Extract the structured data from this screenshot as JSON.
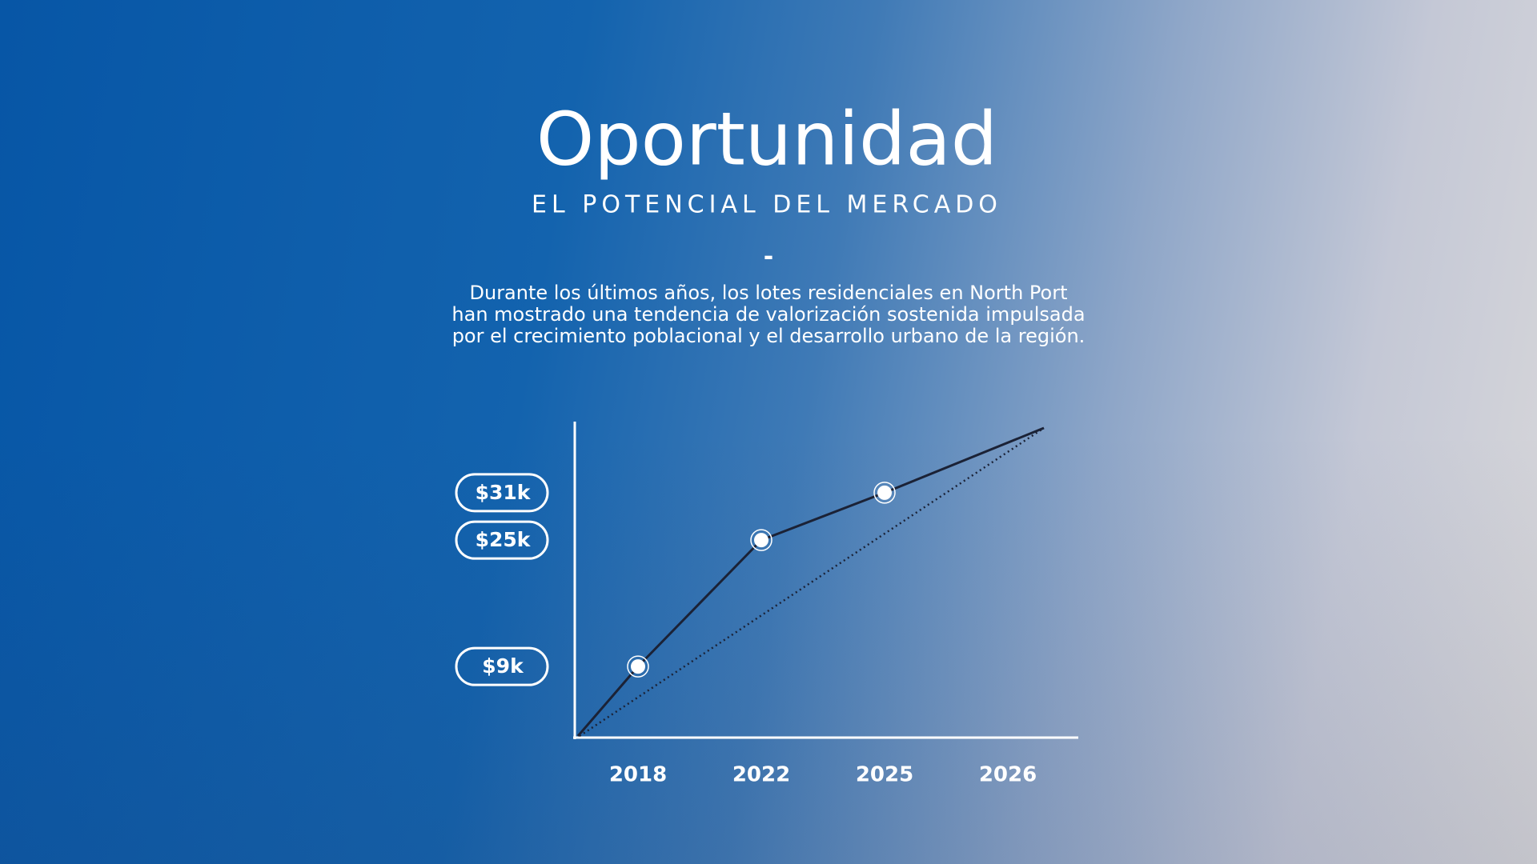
{
  "header": {
    "title": "Oportunidad",
    "subtitle": "EL POTENCIAL DEL MERCADO",
    "divider": "-",
    "body": [
      "Durante los últimos años, los lotes residenciales en North Port",
      "han mostrado una tendencia de valorización sostenida impulsada",
      "por el crecimiento poblacional y el desarrollo urbano de la región."
    ]
  },
  "chart_data": {
    "type": "line",
    "categories": [
      "2018",
      "2022",
      "2025",
      "2026"
    ],
    "values": [
      9000,
      25000,
      31000,
      null
    ],
    "color": "#1b2236",
    "ylim": [
      0,
      40000
    ],
    "yticks": [
      {
        "value": 9000,
        "label": "$9k"
      },
      {
        "value": 25000,
        "label": "$25k"
      },
      {
        "value": 31000,
        "label": "$31k"
      }
    ]
  }
}
